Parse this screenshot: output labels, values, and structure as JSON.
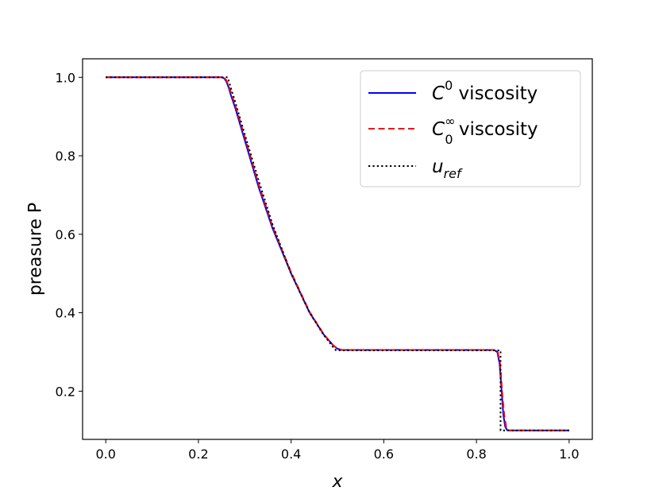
{
  "chart_data": {
    "type": "line",
    "title": "",
    "xlabel": "x",
    "ylabel": "preasure P",
    "xlim": [
      -0.05,
      1.05
    ],
    "ylim": [
      0.0772,
      1.0472
    ],
    "xticks": [
      0.0,
      0.2,
      0.4,
      0.6,
      0.8,
      1.0
    ],
    "xtick_labels": [
      "0.0",
      "0.2",
      "0.4",
      "0.6",
      "0.8",
      "1.0"
    ],
    "yticks": [
      0.2,
      0.4,
      0.6,
      0.8,
      1.0
    ],
    "ytick_labels": [
      "0.2",
      "0.4",
      "0.6",
      "0.8",
      "1.0"
    ],
    "grid": false,
    "legend_position": "top-right",
    "series": [
      {
        "name": "C^0 viscosity",
        "legend_main": "C",
        "legend_sup": "0",
        "legend_sub": "",
        "legend_rest": " viscosity",
        "color": "#0000ff",
        "style": "solid",
        "x": [
          0.0,
          0.25,
          0.255,
          0.26,
          0.265,
          0.27,
          0.28,
          0.3,
          0.33,
          0.36,
          0.4,
          0.44,
          0.47,
          0.49,
          0.5,
          0.51,
          0.52,
          0.6,
          0.7,
          0.8,
          0.838,
          0.845,
          0.85,
          0.855,
          0.858,
          0.862,
          0.866,
          0.87,
          0.9,
          1.0
        ],
        "y": [
          1.0,
          1.0,
          0.998,
          0.99,
          0.975,
          0.955,
          0.92,
          0.84,
          0.72,
          0.615,
          0.5,
          0.4,
          0.345,
          0.318,
          0.308,
          0.305,
          0.305,
          0.305,
          0.305,
          0.305,
          0.305,
          0.3,
          0.27,
          0.19,
          0.14,
          0.11,
          0.101,
          0.1,
          0.1,
          0.1
        ]
      },
      {
        "name": "C_0^inf viscosity",
        "legend_main": "C",
        "legend_sup": "∞",
        "legend_sub": "0",
        "legend_rest": " viscosity",
        "color": "#ff0000",
        "style": "dashed",
        "x": [
          0.0,
          0.25,
          0.255,
          0.26,
          0.265,
          0.27,
          0.28,
          0.3,
          0.33,
          0.36,
          0.4,
          0.44,
          0.47,
          0.49,
          0.5,
          0.51,
          0.52,
          0.6,
          0.7,
          0.8,
          0.84,
          0.846,
          0.851,
          0.856,
          0.86,
          0.864,
          0.868,
          0.872,
          0.9,
          1.0
        ],
        "y": [
          1.0,
          1.0,
          0.999,
          0.993,
          0.98,
          0.962,
          0.927,
          0.848,
          0.727,
          0.62,
          0.503,
          0.402,
          0.346,
          0.318,
          0.308,
          0.305,
          0.305,
          0.305,
          0.305,
          0.305,
          0.305,
          0.3,
          0.27,
          0.19,
          0.14,
          0.11,
          0.101,
          0.1,
          0.1,
          0.1
        ]
      },
      {
        "name": "u_ref",
        "legend_main": "u",
        "legend_sup": "",
        "legend_sub": "ref",
        "legend_rest": "",
        "color": "#000000",
        "style": "dotted",
        "x": [
          0.0,
          0.263,
          0.28,
          0.3,
          0.33,
          0.36,
          0.4,
          0.44,
          0.47,
          0.49,
          0.497,
          0.6,
          0.7,
          0.8,
          0.852,
          0.852,
          0.9,
          1.0
        ],
        "y": [
          1.0,
          1.0,
          0.935,
          0.855,
          0.737,
          0.625,
          0.5,
          0.4,
          0.344,
          0.313,
          0.304,
          0.304,
          0.304,
          0.304,
          0.304,
          0.1,
          0.1,
          0.1
        ]
      }
    ]
  }
}
